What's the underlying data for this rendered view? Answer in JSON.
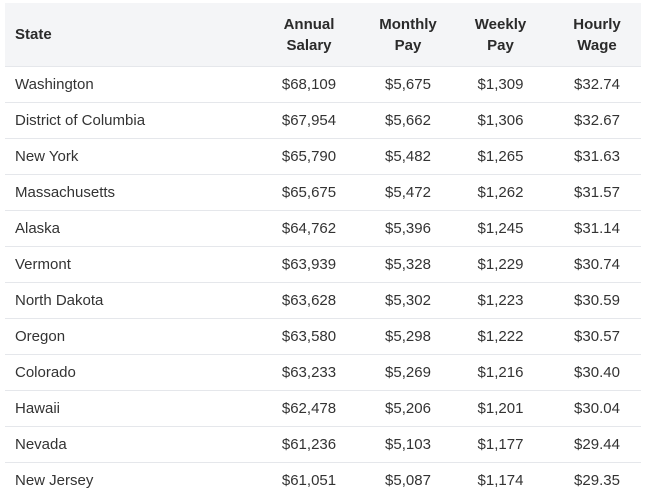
{
  "table": {
    "headers": {
      "state": "State",
      "annual": [
        "Annual",
        "Salary"
      ],
      "monthly": [
        "Monthly",
        "Pay"
      ],
      "weekly": [
        "Weekly",
        "Pay"
      ],
      "hourly": [
        "Hourly",
        "Wage"
      ]
    },
    "rows": [
      {
        "state": "Washington",
        "annual": "$68,109",
        "monthly": "$5,675",
        "weekly": "$1,309",
        "hourly": "$32.74"
      },
      {
        "state": "District of Columbia",
        "annual": "$67,954",
        "monthly": "$5,662",
        "weekly": "$1,306",
        "hourly": "$32.67"
      },
      {
        "state": "New York",
        "annual": "$65,790",
        "monthly": "$5,482",
        "weekly": "$1,265",
        "hourly": "$31.63"
      },
      {
        "state": "Massachusetts",
        "annual": "$65,675",
        "monthly": "$5,472",
        "weekly": "$1,262",
        "hourly": "$31.57"
      },
      {
        "state": "Alaska",
        "annual": "$64,762",
        "monthly": "$5,396",
        "weekly": "$1,245",
        "hourly": "$31.14"
      },
      {
        "state": "Vermont",
        "annual": "$63,939",
        "monthly": "$5,328",
        "weekly": "$1,229",
        "hourly": "$30.74"
      },
      {
        "state": "North Dakota",
        "annual": "$63,628",
        "monthly": "$5,302",
        "weekly": "$1,223",
        "hourly": "$30.59"
      },
      {
        "state": "Oregon",
        "annual": "$63,580",
        "monthly": "$5,298",
        "weekly": "$1,222",
        "hourly": "$30.57"
      },
      {
        "state": "Colorado",
        "annual": "$63,233",
        "monthly": "$5,269",
        "weekly": "$1,216",
        "hourly": "$30.40"
      },
      {
        "state": "Hawaii",
        "annual": "$62,478",
        "monthly": "$5,206",
        "weekly": "$1,201",
        "hourly": "$30.04"
      },
      {
        "state": "Nevada",
        "annual": "$61,236",
        "monthly": "$5,103",
        "weekly": "$1,177",
        "hourly": "$29.44"
      },
      {
        "state": "New Jersey",
        "annual": "$61,051",
        "monthly": "$5,087",
        "weekly": "$1,174",
        "hourly": "$29.35"
      }
    ]
  },
  "colors": {
    "header_bg": "#f4f5f7",
    "row_border": "#e5e7eb",
    "text": "#333333"
  }
}
